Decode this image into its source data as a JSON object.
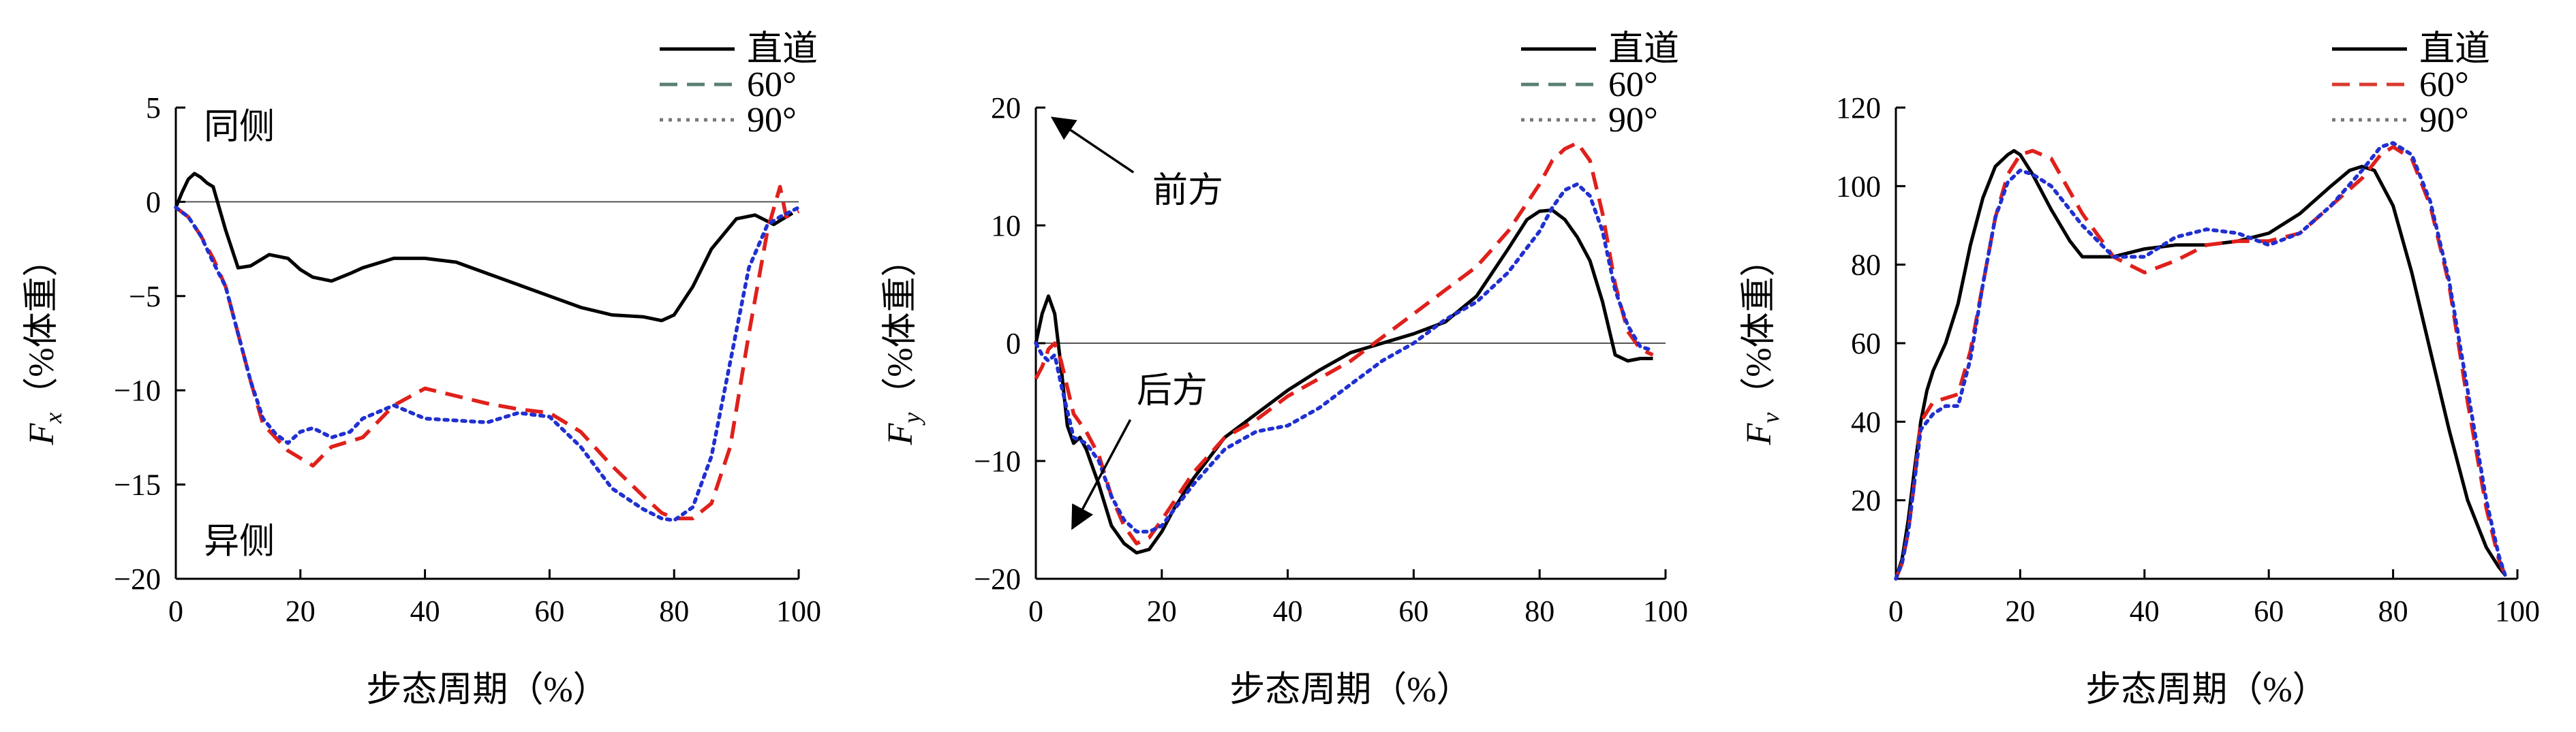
{
  "chart_data": [
    {
      "type": "line",
      "ylabel_main": "F",
      "ylabel_sub": "x",
      "ylabel_unit": "（%体重）",
      "xlabel": "步态周期（%）",
      "xlim": [
        0,
        100
      ],
      "ylim": [
        -20,
        5
      ],
      "xticks": [
        0,
        20,
        40,
        60,
        80,
        100
      ],
      "yticks": [
        -20,
        -15,
        -10,
        -5,
        0,
        5
      ],
      "zero_line": true,
      "legend_position": "top-right",
      "annotations": [
        {
          "text": "同侧",
          "at": [
            4.5,
            4
          ]
        },
        {
          "text": "异侧",
          "at": [
            4.5,
            -18
          ]
        }
      ],
      "arrows": [],
      "series": [
        {
          "name": "直道",
          "color": "#000000",
          "dash": "solid",
          "x": [
            0,
            1,
            2,
            3,
            4,
            5,
            6,
            8,
            10,
            12,
            15,
            18,
            20,
            22,
            25,
            28,
            30,
            35,
            40,
            45,
            50,
            55,
            60,
            65,
            70,
            75,
            78,
            80,
            83,
            86,
            90,
            93,
            96,
            99
          ],
          "y": [
            -0.3,
            0.5,
            1.2,
            1.5,
            1.3,
            1.0,
            0.8,
            -1.5,
            -3.5,
            -3.4,
            -2.8,
            -3.0,
            -3.6,
            -4.0,
            -4.2,
            -3.8,
            -3.5,
            -3.0,
            -3.0,
            -3.2,
            -3.8,
            -4.4,
            -5.0,
            -5.6,
            -6.0,
            -6.1,
            -6.3,
            -6.0,
            -4.5,
            -2.5,
            -0.9,
            -0.7,
            -1.2,
            -0.6
          ]
        },
        {
          "name": "60°",
          "color": "#e0201b",
          "dash": "dash",
          "x": [
            0,
            2,
            4,
            6,
            8,
            10,
            12,
            14,
            16,
            18,
            20,
            22,
            25,
            30,
            35,
            40,
            45,
            50,
            55,
            60,
            65,
            70,
            75,
            78,
            80,
            83,
            86,
            89,
            92,
            95,
            97,
            98,
            100
          ],
          "y": [
            -0.3,
            -0.8,
            -1.8,
            -3.0,
            -4.5,
            -7.0,
            -9.5,
            -11.8,
            -12.5,
            -13.2,
            -13.6,
            -14.0,
            -13.0,
            -12.5,
            -10.8,
            -9.9,
            -10.3,
            -10.7,
            -11.0,
            -11.2,
            -12.2,
            -14.0,
            -15.6,
            -16.5,
            -16.8,
            -16.8,
            -16.0,
            -13.0,
            -7.0,
            -1.5,
            0.8,
            -0.8,
            -0.5
          ]
        },
        {
          "name": "90°",
          "color": "#2030d0",
          "dash": "dot",
          "x": [
            0,
            2,
            4,
            6,
            8,
            10,
            12,
            14,
            16,
            18,
            20,
            22,
            25,
            28,
            30,
            35,
            40,
            45,
            50,
            55,
            60,
            65,
            70,
            75,
            78,
            80,
            83,
            86,
            89,
            92,
            95,
            97,
            100
          ],
          "y": [
            -0.3,
            -0.8,
            -1.8,
            -3.2,
            -4.5,
            -7.0,
            -9.5,
            -11.5,
            -12.3,
            -12.8,
            -12.2,
            -12.0,
            -12.5,
            -12.2,
            -11.5,
            -10.8,
            -11.5,
            -11.6,
            -11.7,
            -11.2,
            -11.4,
            -13.0,
            -15.2,
            -16.3,
            -16.8,
            -16.9,
            -16.2,
            -13.5,
            -8.5,
            -3.5,
            -1.2,
            -0.8,
            -0.3
          ]
        }
      ],
      "legend_samples": [
        {
          "name": "直道",
          "color": "#000000",
          "dash": "solid"
        },
        {
          "name": "60°",
          "color": "#5a7f70",
          "dash": "dash"
        },
        {
          "name": "90°",
          "color": "#777777",
          "dash": "dot"
        }
      ]
    },
    {
      "type": "line",
      "ylabel_main": "F",
      "ylabel_sub": "y",
      "ylabel_unit": "（%体重）",
      "xlabel": "步态周期（%）",
      "xlim": [
        0,
        100
      ],
      "ylim": [
        -20,
        20
      ],
      "xticks": [
        0,
        20,
        40,
        60,
        80,
        100
      ],
      "yticks": [
        -20,
        -10,
        0,
        10,
        20
      ],
      "zero_line": true,
      "legend_position": "top-right",
      "annotations": [
        {
          "text": "前方",
          "at": [
            18.5,
            13
          ]
        },
        {
          "text": "后方",
          "at": [
            16,
            -4
          ]
        }
      ],
      "arrows": [
        {
          "from": [
            15.5,
            14.5
          ],
          "to": [
            3,
            19
          ]
        },
        {
          "from": [
            15,
            -6.5
          ],
          "to": [
            6,
            -15.5
          ]
        }
      ],
      "series": [
        {
          "name": "直道",
          "color": "#000000",
          "dash": "solid",
          "x": [
            0,
            1,
            2,
            3,
            4,
            5,
            6,
            7,
            8,
            10,
            12,
            14,
            16,
            18,
            20,
            22,
            25,
            30,
            35,
            40,
            45,
            50,
            55,
            60,
            65,
            70,
            75,
            78,
            80,
            82,
            84,
            86,
            88,
            90,
            92,
            94,
            96,
            98
          ],
          "y": [
            0,
            2.5,
            4.0,
            2.5,
            -2.0,
            -7.0,
            -8.5,
            -8.0,
            -9.0,
            -12.0,
            -15.5,
            -17.0,
            -17.8,
            -17.5,
            -16.0,
            -14.0,
            -11.5,
            -8.0,
            -6.0,
            -4.0,
            -2.3,
            -0.8,
            0,
            0.8,
            1.8,
            4.0,
            8.0,
            10.5,
            11.2,
            11.3,
            10.5,
            9.0,
            7.0,
            3.5,
            -1.0,
            -1.5,
            -1.3,
            -1.3
          ]
        },
        {
          "name": "60°",
          "color": "#e0201b",
          "dash": "dash",
          "x": [
            0,
            1,
            2,
            3,
            4,
            6,
            8,
            10,
            12,
            14,
            16,
            18,
            20,
            25,
            30,
            35,
            40,
            45,
            50,
            55,
            60,
            65,
            70,
            75,
            80,
            82,
            84,
            86,
            88,
            90,
            92,
            94,
            96,
            98
          ],
          "y": [
            -3.0,
            -2.0,
            -0.5,
            0,
            -1.5,
            -6.0,
            -7.5,
            -9.5,
            -13.0,
            -15.5,
            -17.0,
            -16.5,
            -15.0,
            -11.0,
            -8.0,
            -6.5,
            -4.5,
            -3.0,
            -1.5,
            0.5,
            2.5,
            4.5,
            6.5,
            9.5,
            13.5,
            15.5,
            16.5,
            17.0,
            15.5,
            11.0,
            5.0,
            1.0,
            -0.5,
            -1.0
          ]
        },
        {
          "name": "90°",
          "color": "#2030d0",
          "dash": "dot",
          "x": [
            0,
            1,
            2,
            3,
            4,
            6,
            8,
            10,
            12,
            14,
            16,
            18,
            20,
            25,
            30,
            35,
            40,
            45,
            50,
            55,
            60,
            65,
            70,
            75,
            80,
            82,
            84,
            86,
            88,
            90,
            92,
            94,
            96,
            98
          ],
          "y": [
            0,
            -1.0,
            -1.5,
            -1.0,
            -3.5,
            -8.0,
            -8.5,
            -10.0,
            -13.0,
            -15.0,
            -16.0,
            -16.0,
            -15.5,
            -12.0,
            -9.0,
            -7.5,
            -7.0,
            -5.5,
            -3.5,
            -1.5,
            0,
            2.0,
            3.5,
            6.0,
            9.5,
            11.5,
            13.0,
            13.5,
            12.5,
            9.5,
            4.5,
            1.5,
            -0.3,
            -0.6
          ]
        }
      ],
      "legend_samples": [
        {
          "name": "直道",
          "color": "#000000",
          "dash": "solid"
        },
        {
          "name": "60°",
          "color": "#5a7f70",
          "dash": "dash"
        },
        {
          "name": "90°",
          "color": "#777777",
          "dash": "dot"
        }
      ]
    },
    {
      "type": "line",
      "ylabel_main": "F",
      "ylabel_sub": "v",
      "ylabel_unit": "（%体重）",
      "xlabel": "步态周期（%）",
      "xlim": [
        0,
        100
      ],
      "ylim": [
        0,
        120
      ],
      "xticks": [
        0,
        20,
        40,
        60,
        80,
        100
      ],
      "yticks": [
        0,
        20,
        40,
        60,
        80,
        100,
        120
      ],
      "hide_yticks": [
        0
      ],
      "zero_line": false,
      "legend_position": "top-right",
      "annotations": [],
      "arrows": [],
      "series": [
        {
          "name": "直道",
          "color": "#000000",
          "dash": "solid",
          "x": [
            0,
            1,
            2,
            3,
            4,
            5,
            6,
            8,
            10,
            12,
            14,
            16,
            18,
            19,
            20,
            22,
            25,
            28,
            30,
            35,
            40,
            45,
            50,
            55,
            60,
            65,
            70,
            73,
            75,
            77,
            80,
            83,
            86,
            89,
            92,
            95,
            97,
            98
          ],
          "y": [
            0,
            5,
            15,
            28,
            40,
            48,
            53,
            60,
            70,
            85,
            97,
            105,
            108,
            109,
            108,
            103,
            94,
            86,
            82,
            82,
            84,
            85,
            85,
            86,
            88,
            93,
            100,
            104,
            105,
            104,
            95,
            78,
            58,
            38,
            20,
            8,
            3,
            1
          ]
        },
        {
          "name": "60°",
          "color": "#e0201b",
          "dash": "dash",
          "x": [
            0,
            1,
            2,
            3,
            4,
            6,
            8,
            10,
            12,
            14,
            16,
            18,
            20,
            22,
            25,
            30,
            35,
            40,
            45,
            50,
            55,
            60,
            65,
            70,
            75,
            78,
            80,
            83,
            86,
            89,
            92,
            95,
            97,
            98
          ],
          "y": [
            0,
            4,
            12,
            25,
            40,
            45,
            46,
            47,
            58,
            75,
            92,
            103,
            108,
            109,
            107,
            93,
            82,
            78,
            81,
            85,
            86,
            86,
            88,
            95,
            102,
            108,
            110,
            107,
            95,
            75,
            45,
            18,
            5,
            1
          ]
        },
        {
          "name": "90°",
          "color": "#2030d0",
          "dash": "dot",
          "x": [
            0,
            1,
            2,
            3,
            4,
            6,
            8,
            10,
            12,
            14,
            16,
            18,
            20,
            22,
            25,
            30,
            35,
            40,
            45,
            50,
            55,
            60,
            65,
            70,
            75,
            78,
            80,
            83,
            86,
            89,
            92,
            95,
            97,
            98
          ],
          "y": [
            0,
            4,
            12,
            25,
            38,
            42,
            44,
            44,
            56,
            75,
            92,
            101,
            104,
            103,
            100,
            90,
            82,
            82,
            87,
            89,
            88,
            85,
            88,
            95,
            104,
            110,
            111,
            108,
            96,
            76,
            48,
            20,
            6,
            1
          ]
        }
      ],
      "legend_samples": [
        {
          "name": "直道",
          "color": "#000000",
          "dash": "solid"
        },
        {
          "name": "60°",
          "color": "#d83a2e",
          "dash": "dash"
        },
        {
          "name": "90°",
          "color": "#777777",
          "dash": "dot"
        }
      ]
    }
  ]
}
